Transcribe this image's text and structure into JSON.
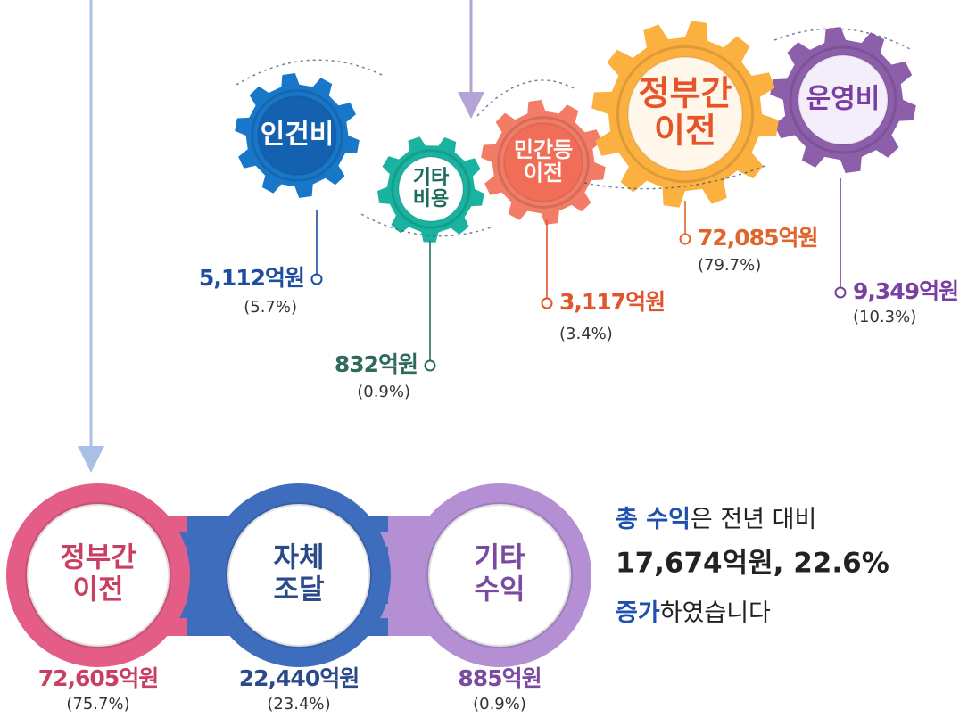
{
  "expenditure": [
    {
      "label": [
        "인건비"
      ],
      "amount": "5,112억원",
      "share": "(5.7%)"
    },
    {
      "label": [
        "기타",
        "비용"
      ],
      "amount": "832억원",
      "share": "(0.9%)"
    },
    {
      "label": [
        "민간등",
        "이전"
      ],
      "amount": "3,117억원",
      "share": "(3.4%)"
    },
    {
      "label": [
        "정부간",
        "이전"
      ],
      "amount": "72,085억원",
      "share": "(79.7%)"
    },
    {
      "label": [
        "운영비"
      ],
      "amount": "9,349억원",
      "share": "(10.3%)"
    }
  ],
  "revenue": [
    {
      "label": [
        "정부간",
        "이전"
      ],
      "amount": "72,605억원",
      "share": "(75.7%)"
    },
    {
      "label": [
        "자체",
        "조달"
      ],
      "amount": "22,440억원",
      "share": "(23.4%)"
    },
    {
      "label": [
        "기타",
        "수익"
      ],
      "amount": "885억원",
      "share": "(0.9%)"
    }
  ],
  "summary": {
    "line1": [
      "총 수익",
      "은 전년 대비"
    ],
    "line2": "17,674억원, 22.6%",
    "line3": [
      "증가",
      "하였습니다"
    ]
  }
}
